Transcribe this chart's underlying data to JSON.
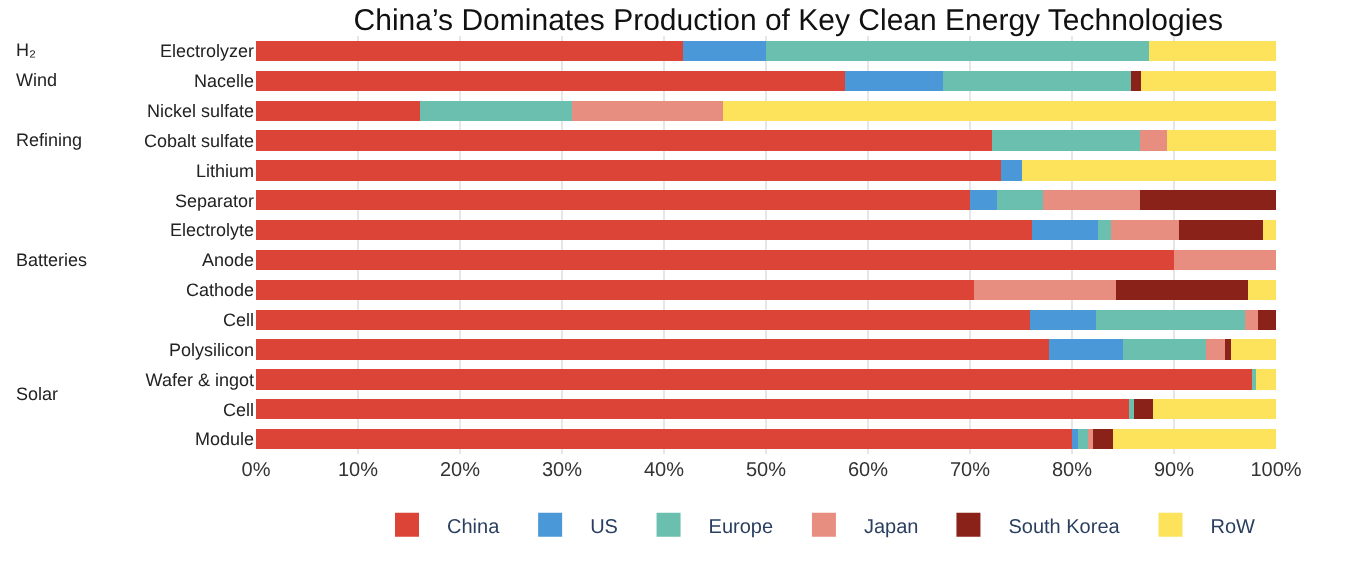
{
  "chart_data": {
    "type": "bar",
    "orientation": "horizontal",
    "stacked": true,
    "title": "China’s Dominates Production of Key Clean Energy Technologies",
    "categories": [
      "Electrolyzer",
      "Nacelle",
      "Nickel sulfate",
      "Cobalt sulfate",
      "Lithium",
      "Separator",
      "Electrolyte",
      "Anode",
      "Cathode",
      "Cell",
      "Polysilicon",
      "Wafer & ingot",
      "Cell",
      "Module"
    ],
    "series": [
      {
        "name": "China",
        "color": "#dc4437",
        "values": [
          41.9,
          57.7,
          16.1,
          72.2,
          73.0,
          70.0,
          76.1,
          90.0,
          70.4,
          75.9,
          77.7,
          97.6,
          85.6,
          80.0
        ]
      },
      {
        "name": "US",
        "color": "#4a98d8",
        "values": [
          8.1,
          9.7,
          null,
          null,
          2.1,
          2.6,
          6.4,
          null,
          null,
          6.5,
          7.3,
          null,
          null,
          0.6
        ]
      },
      {
        "name": "Europe",
        "color": "#6bbfae",
        "values": [
          37.5,
          18.4,
          14.9,
          14.5,
          null,
          4.6,
          1.3,
          null,
          null,
          14.6,
          8.1,
          0.4,
          0.5,
          1.0
        ]
      },
      {
        "name": "Japan",
        "color": "#e88e80",
        "values": [
          null,
          null,
          14.8,
          2.6,
          null,
          9.5,
          6.7,
          10.0,
          13.9,
          1.2,
          1.9,
          null,
          null,
          0.5
        ]
      },
      {
        "name": "South Korea",
        "color": "#8b2219",
        "values": [
          null,
          1.0,
          null,
          null,
          null,
          13.3,
          8.2,
          null,
          13.0,
          1.8,
          0.6,
          null,
          1.8,
          1.9
        ]
      },
      {
        "name": "RoW",
        "color": "#fde35c",
        "values": [
          12.5,
          13.2,
          54.2,
          10.7,
          24.9,
          null,
          1.3,
          null,
          2.7,
          null,
          4.4,
          2.0,
          12.1,
          16.0
        ]
      }
    ],
    "xlim": [
      0,
      100
    ],
    "xticks": [
      {
        "value": 0,
        "label": "0%"
      },
      {
        "value": 10,
        "label": "10%"
      },
      {
        "value": 20,
        "label": "20%"
      },
      {
        "value": 30,
        "label": "30%"
      },
      {
        "value": 40,
        "label": "40%"
      },
      {
        "value": 50,
        "label": "50%"
      },
      {
        "value": 60,
        "label": "60%"
      },
      {
        "value": 70,
        "label": "70%"
      },
      {
        "value": 80,
        "label": "80%"
      },
      {
        "value": 90,
        "label": "90%"
      },
      {
        "value": 100,
        "label": "100%"
      }
    ],
    "annotations": [
      "H₂",
      "Wind",
      "Refining",
      "Batteries",
      "Solar"
    ],
    "grid": "x",
    "legend": "bottom"
  }
}
